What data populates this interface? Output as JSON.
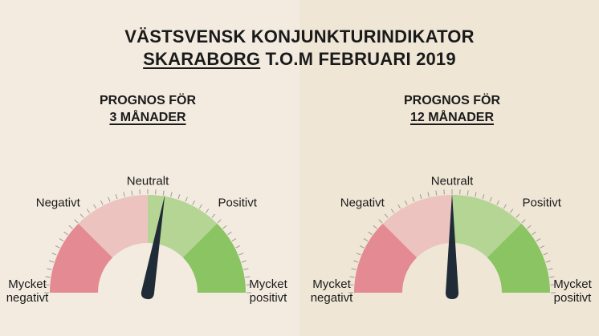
{
  "header": {
    "title": "VÄSTSVENSK KONJUNKTURINDIKATOR",
    "region": "SKARABORG",
    "period": "T.O.M FEBRUARI 2019"
  },
  "chart_data": [
    {
      "type": "gauge",
      "title": "PROGNOS FÖR",
      "subtitle": "3 MÅNADER",
      "value": 0.22,
      "ylim": [
        -2,
        2
      ],
      "yticks": [
        {
          "value": -2,
          "label": "Mycket negativt"
        },
        {
          "value": -1,
          "label": "Negativt"
        },
        {
          "value": 0,
          "label": "Neutralt"
        },
        {
          "value": 1,
          "label": "Positivt"
        },
        {
          "value": 2,
          "label": "Mycket positivt"
        }
      ],
      "colors": [
        "#e48a92",
        "#ecc3bf",
        "#b5d595",
        "#8bc462"
      ],
      "needle_color": "#1f2b36"
    },
    {
      "type": "gauge",
      "title": "PROGNOS FÖR",
      "subtitle": "12 MÅNADER",
      "value": 0,
      "ylim": [
        -2,
        2
      ],
      "yticks": [
        {
          "value": -2,
          "label": "Mycket negativt"
        },
        {
          "value": -1,
          "label": "Negativt"
        },
        {
          "value": 0,
          "label": "Neutralt"
        },
        {
          "value": 1,
          "label": "Positivt"
        },
        {
          "value": 2,
          "label": "Mycket positivt"
        }
      ],
      "colors": [
        "#e48a92",
        "#ecc3bf",
        "#b5d595",
        "#8bc462"
      ],
      "needle_color": "#1f2b36"
    }
  ]
}
